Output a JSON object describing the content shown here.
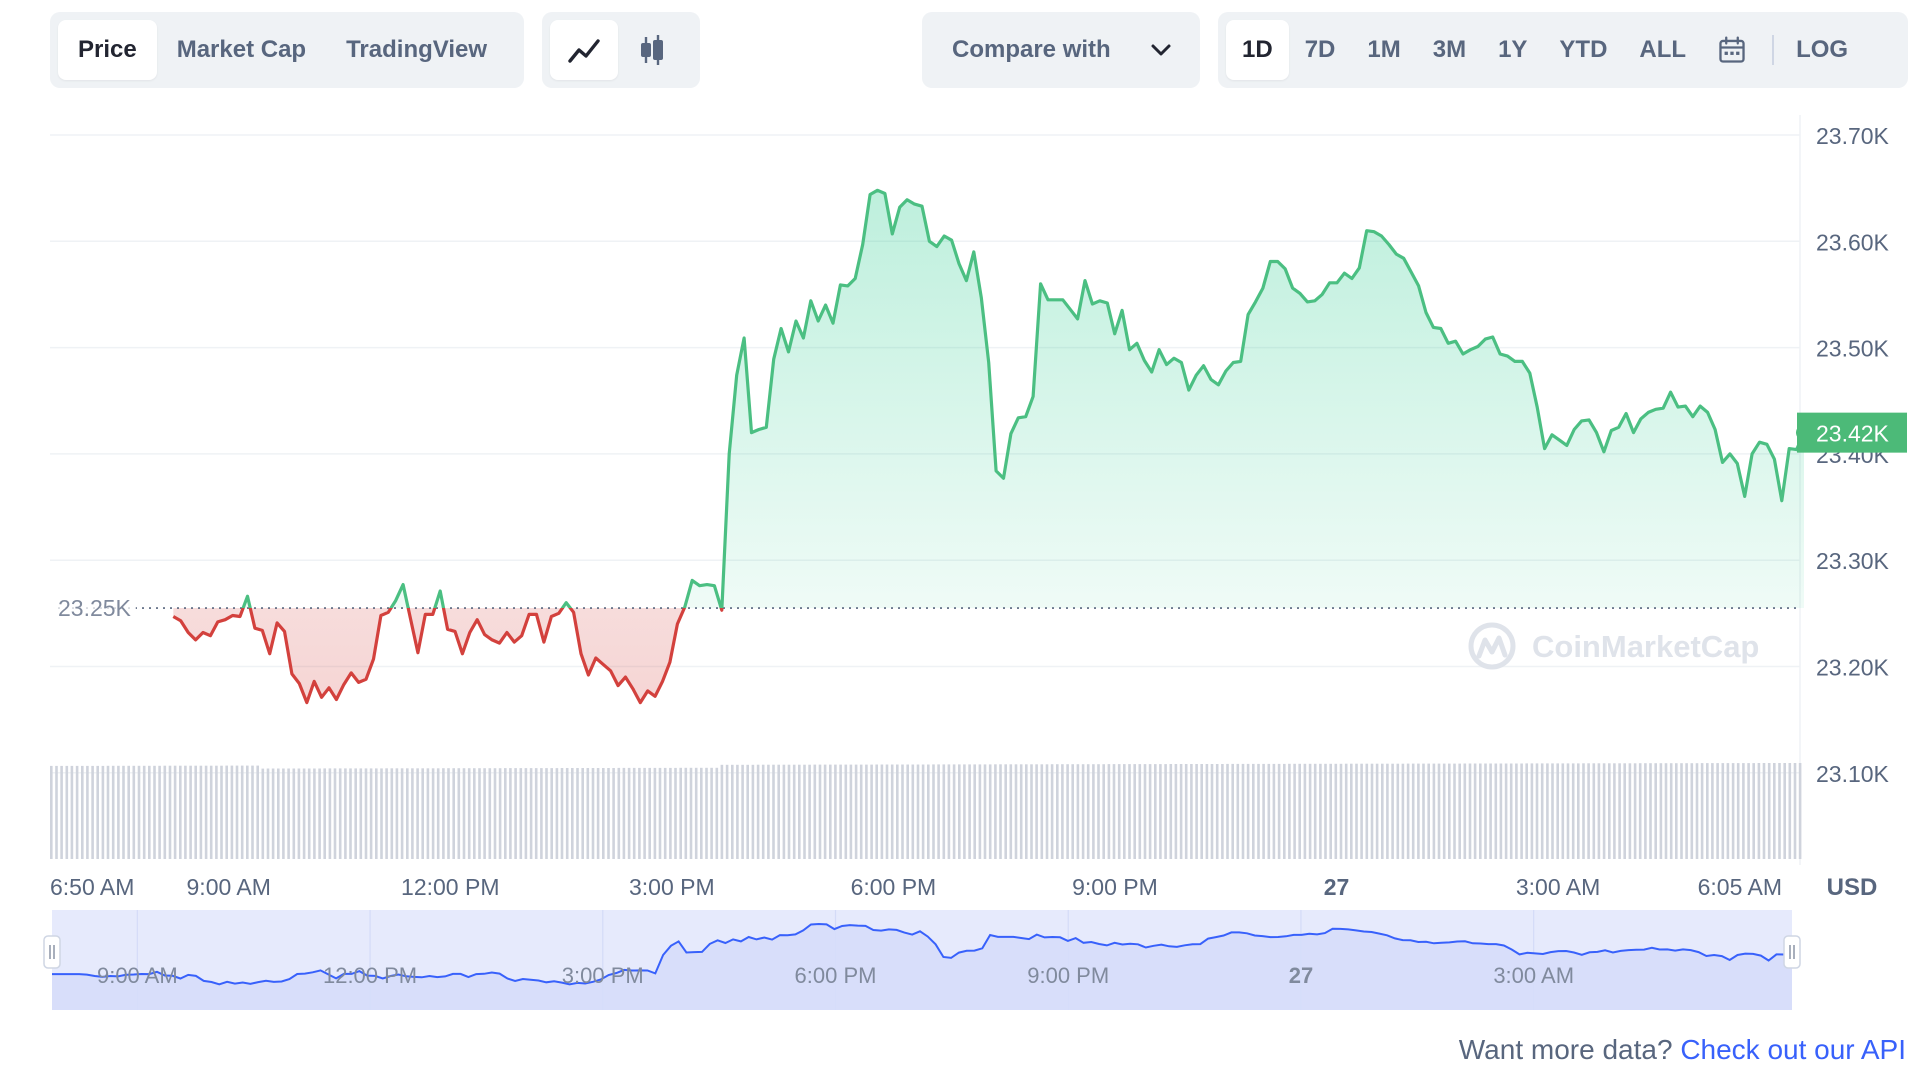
{
  "toolbar": {
    "tabs": [
      {
        "label": "Price",
        "active": true
      },
      {
        "label": "Market Cap",
        "active": false
      },
      {
        "label": "TradingView",
        "active": false
      }
    ],
    "chart_types": [
      {
        "icon": "line-chart-icon",
        "active": true
      },
      {
        "icon": "candlestick-icon",
        "active": false
      }
    ],
    "compare_label": "Compare with",
    "compare_icon": "chevron-down-icon",
    "ranges": [
      {
        "label": "1D",
        "active": true
      },
      {
        "label": "7D",
        "active": false
      },
      {
        "label": "1M",
        "active": false
      },
      {
        "label": "3M",
        "active": false
      },
      {
        "label": "1Y",
        "active": false
      },
      {
        "label": "YTD",
        "active": false
      },
      {
        "label": "ALL",
        "active": false
      }
    ],
    "calendar_icon": "calendar-icon",
    "log_label": "LOG"
  },
  "chart_data": {
    "type": "area",
    "currency_label": "USD",
    "y_ticks": [
      "23.70K",
      "23.60K",
      "23.50K",
      "23.40K",
      "23.30K",
      "23.20K",
      "23.10K"
    ],
    "y_tick_values": [
      23700,
      23600,
      23500,
      23400,
      23300,
      23200,
      23100
    ],
    "ylim": [
      23080,
      23740
    ],
    "x_labels": [
      {
        "label": "6:50 AM",
        "hour": -0.17,
        "bold": false
      },
      {
        "label": "9:00 AM",
        "hour": 2,
        "bold": false
      },
      {
        "label": "12:00 PM",
        "hour": 5,
        "bold": false
      },
      {
        "label": "3:00 PM",
        "hour": 8,
        "bold": false
      },
      {
        "label": "6:00 PM",
        "hour": 11,
        "bold": false
      },
      {
        "label": "9:00 PM",
        "hour": 14,
        "bold": false
      },
      {
        "label": "27",
        "hour": 17,
        "bold": true
      },
      {
        "label": "3:00 AM",
        "hour": 20,
        "bold": false
      },
      {
        "label": "6:05 AM",
        "hour": 23.08,
        "bold": false
      }
    ],
    "x_range_hours": [
      -0.42,
      23.33
    ],
    "baseline": {
      "value": 23255,
      "label": "23.25K"
    },
    "current": {
      "value": 23420,
      "label": "23.42K"
    },
    "line_start_hour": 1.25,
    "line_end_hour": 23.33,
    "values": [
      23247,
      23243,
      23232,
      23225,
      23232,
      23229,
      23242,
      23244,
      23248,
      23247,
      23266,
      23236,
      23234,
      23212,
      23241,
      23233,
      23193,
      23184,
      23166,
      23186,
      23171,
      23180,
      23169,
      23183,
      23194,
      23185,
      23188,
      23207,
      23248,
      23251,
      23262,
      23277,
      23245,
      23213,
      23249,
      23249,
      23271,
      23235,
      23233,
      23212,
      23232,
      23244,
      23230,
      23225,
      23222,
      23232,
      23223,
      23229,
      23249,
      23249,
      23223,
      23247,
      23250,
      23260,
      23251,
      23212,
      23192,
      23208,
      23202,
      23196,
      23182,
      23190,
      23179,
      23166,
      23177,
      23172,
      23186,
      23204,
      23240,
      23256,
      23281,
      23276,
      23277,
      23276,
      23253,
      23400,
      23474,
      23509,
      23420,
      23423,
      23425,
      23489,
      23518,
      23496,
      23525,
      23509,
      23544,
      23525,
      23540,
      23523,
      23559,
      23558,
      23565,
      23597,
      23644,
      23648,
      23645,
      23607,
      23632,
      23639,
      23635,
      23633,
      23600,
      23595,
      23605,
      23601,
      23579,
      23563,
      23590,
      23547,
      23486,
      23384,
      23377,
      23419,
      23434,
      23435,
      23454,
      23560,
      23545,
      23545,
      23545,
      23536,
      23527,
      23563,
      23541,
      23544,
      23542,
      23513,
      23535,
      23498,
      23504,
      23488,
      23477,
      23498,
      23484,
      23490,
      23486,
      23460,
      23474,
      23483,
      23470,
      23465,
      23478,
      23486,
      23487,
      23531,
      23543,
      23556,
      23581,
      23581,
      23574,
      23556,
      23551,
      23543,
      23544,
      23550,
      23561,
      23561,
      23570,
      23565,
      23575,
      23610,
      23609,
      23605,
      23597,
      23588,
      23584,
      23571,
      23558,
      23533,
      23519,
      23518,
      23504,
      23506,
      23494,
      23498,
      23501,
      23508,
      23510,
      23494,
      23492,
      23487,
      23487,
      23476,
      23444,
      23405,
      23418,
      23413,
      23408,
      23423,
      23431,
      23432,
      23420,
      23402,
      23422,
      23425,
      23438,
      23420,
      23433,
      23439,
      23442,
      23443,
      23458,
      23444,
      23445,
      23435,
      23445,
      23439,
      23423,
      23392,
      23400,
      23391,
      23360,
      23400,
      23411,
      23409,
      23395,
      23356,
      23405,
      23404,
      23420
    ],
    "volume_start_hour": -0.42,
    "volume_end_hour": 23.33,
    "volume_levels": [
      0.94,
      0.97
    ],
    "watermark": "CoinMarketCap",
    "navigator_x_labels": [
      {
        "label": "9:00 AM",
        "hour": 2,
        "bold": false
      },
      {
        "label": "12:00 PM",
        "hour": 5,
        "bold": false
      },
      {
        "label": "3:00 PM",
        "hour": 8,
        "bold": false
      },
      {
        "label": "6:00 PM",
        "hour": 11,
        "bold": false
      },
      {
        "label": "9:00 PM",
        "hour": 14,
        "bold": false
      },
      {
        "label": "27",
        "hour": 17,
        "bold": true
      },
      {
        "label": "3:00 AM",
        "hour": 20,
        "bold": false
      }
    ]
  },
  "colors": {
    "up": "#16c784",
    "up_line": "#4bbf82",
    "down": "#d3413d",
    "current_badge": "#4cba78",
    "navigator_fill": "#e6eafc",
    "navigator_line": "#3861fb",
    "volume": "#cfd3dc",
    "grid": "#eff2f5",
    "axis_text": "#58667e"
  },
  "footer": {
    "text": "Want more data?",
    "link": "Check out our API"
  }
}
